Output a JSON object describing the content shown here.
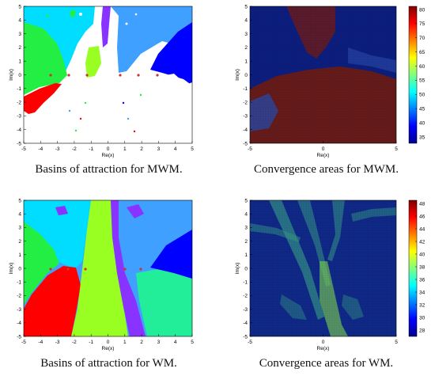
{
  "panels": [
    {
      "kind": "basin",
      "caption": "Basins of attraction for MWM.",
      "xlabel": "Re(x)",
      "ylabel": "Im(x)",
      "xticks": [
        "-5",
        "-4",
        "-3",
        "-2",
        "-1",
        "0",
        "1",
        "2",
        "3",
        "4",
        "5"
      ],
      "yticks": [
        "5",
        "4",
        "3",
        "2",
        "1",
        "0",
        "-1",
        "-2",
        "-3",
        "-4",
        "-5"
      ]
    },
    {
      "kind": "convergence",
      "caption": "Convergence areas for MWM.",
      "xlabel": "Re(x)",
      "ylabel": "Im(x)",
      "xticks": [
        "-5",
        "0",
        "5"
      ],
      "yticks": [
        "5",
        "4",
        "3",
        "2",
        "1",
        "0",
        "-1",
        "-2",
        "-3",
        "-4",
        "-5"
      ],
      "colorbar_ticks": [
        "80",
        "75",
        "70",
        "65",
        "60",
        "55",
        "50",
        "45",
        "40",
        "35"
      ]
    },
    {
      "kind": "basin",
      "caption": "Basins of attraction for WM.",
      "xlabel": "Re(x)",
      "ylabel": "Im(x)",
      "xticks": [
        "-5",
        "-4",
        "-3",
        "-2",
        "-1",
        "0",
        "1",
        "2",
        "3",
        "4",
        "5"
      ],
      "yticks": [
        "5",
        "4",
        "3",
        "2",
        "1",
        "0",
        "-1",
        "-2",
        "-3",
        "-4",
        "-5"
      ]
    },
    {
      "kind": "convergence",
      "caption": "Convergence areas for WM.",
      "xlabel": "Re(x)",
      "ylabel": "Im(x)",
      "xticks": [
        "-5",
        "0",
        "5"
      ],
      "yticks": [
        "5",
        "4",
        "3",
        "2",
        "1",
        "0",
        "-1",
        "-2",
        "-3",
        "-4",
        "-5"
      ],
      "colorbar_ticks": [
        "48",
        "46",
        "44",
        "42",
        "40",
        "38",
        "36",
        "34",
        "32",
        "30",
        "28"
      ]
    }
  ],
  "colors": {
    "basin_white": "#ffffff",
    "basin_cyan": "#00ddff",
    "basin_lightblue": "#40a0ff",
    "basin_blue": "#0000ff",
    "basin_green": "#22ee44",
    "basin_red": "#ff0000",
    "basin_lime": "#99ff22",
    "basin_purple": "#8833ff",
    "basin_sea": "#22ee99",
    "conv_bg": "#0d1f82",
    "conv_hot": "#7a1a0a",
    "conv_glow": "#6fe07a",
    "axis": "#000000"
  }
}
